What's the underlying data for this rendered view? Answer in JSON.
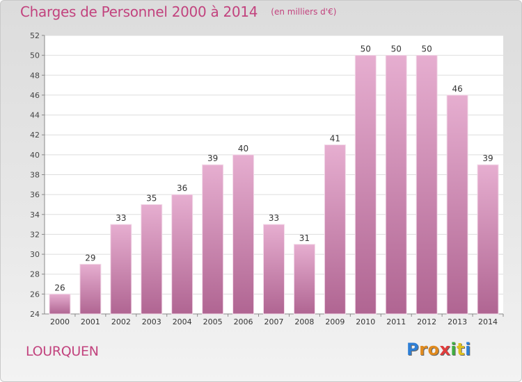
{
  "title": "Charges de Personnel 2000 à 2014",
  "subtitle": "(en milliers d'€)",
  "commune": "LOURQUEN",
  "logo": {
    "letters": [
      "P",
      "r",
      "o",
      "x",
      "i",
      "t",
      "i"
    ],
    "colors": [
      "#2e7fd6",
      "#e08a1e",
      "#e08a1e",
      "#e03c3c",
      "#3fae3f",
      "#e0c020",
      "#2e7fd6"
    ]
  },
  "colors": {
    "accent": "#c2437e",
    "bar_top": "#e6aed0",
    "bar_bottom": "#b06592"
  },
  "chart_data": {
    "type": "bar",
    "categories": [
      "2000",
      "2001",
      "2002",
      "2003",
      "2004",
      "2005",
      "2006",
      "2007",
      "2008",
      "2009",
      "2010",
      "2011",
      "2012",
      "2013",
      "2014"
    ],
    "values": [
      26,
      29,
      33,
      35,
      36,
      39,
      40,
      33,
      31,
      41,
      50,
      50,
      50,
      46,
      39
    ],
    "ylim": [
      24,
      52
    ],
    "yticks": [
      24,
      26,
      28,
      30,
      32,
      34,
      36,
      38,
      40,
      42,
      44,
      46,
      48,
      50,
      52
    ],
    "grid": true,
    "show_data_labels": true,
    "title": "Charges de Personnel 2000 à 2014",
    "xlabel": "",
    "ylabel": ""
  }
}
